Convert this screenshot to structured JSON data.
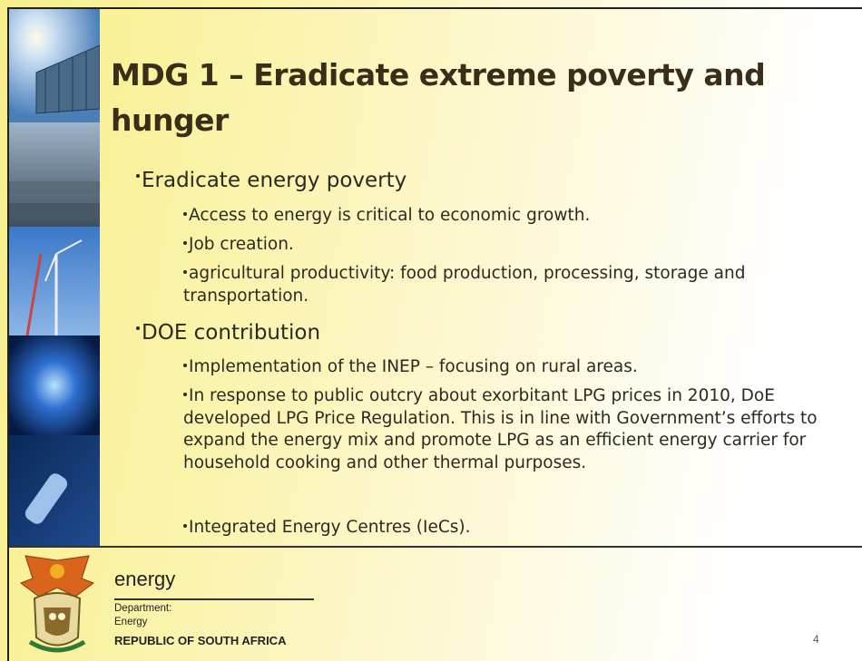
{
  "slide": {
    "title": "MDG 1 – Eradicate extreme poverty and hunger",
    "sections": [
      {
        "heading": "Eradicate energy poverty",
        "items": [
          "Access to energy is critical to economic growth.",
          "Job creation.",
          "agricultural productivity:  food production, processing, storage and transportation."
        ]
      },
      {
        "heading": "DOE contribution",
        "items": [
          "Implementation of the INEP – focusing on rural areas.",
          "In response to public outcry about exorbitant LPG prices in 2010, DoE developed LPG Price Regulation. This is in line with Government’s efforts to expand the energy mix and promote LPG as an efficient energy carrier for household cooking and other thermal purposes.",
          "Integrated Energy Centres (IeCs)."
        ]
      }
    ],
    "footer": {
      "brand": "energy",
      "line1": "Department:",
      "line2": "Energy",
      "country": "REPUBLIC OF SOUTH AFRICA"
    },
    "page_number": "4"
  }
}
